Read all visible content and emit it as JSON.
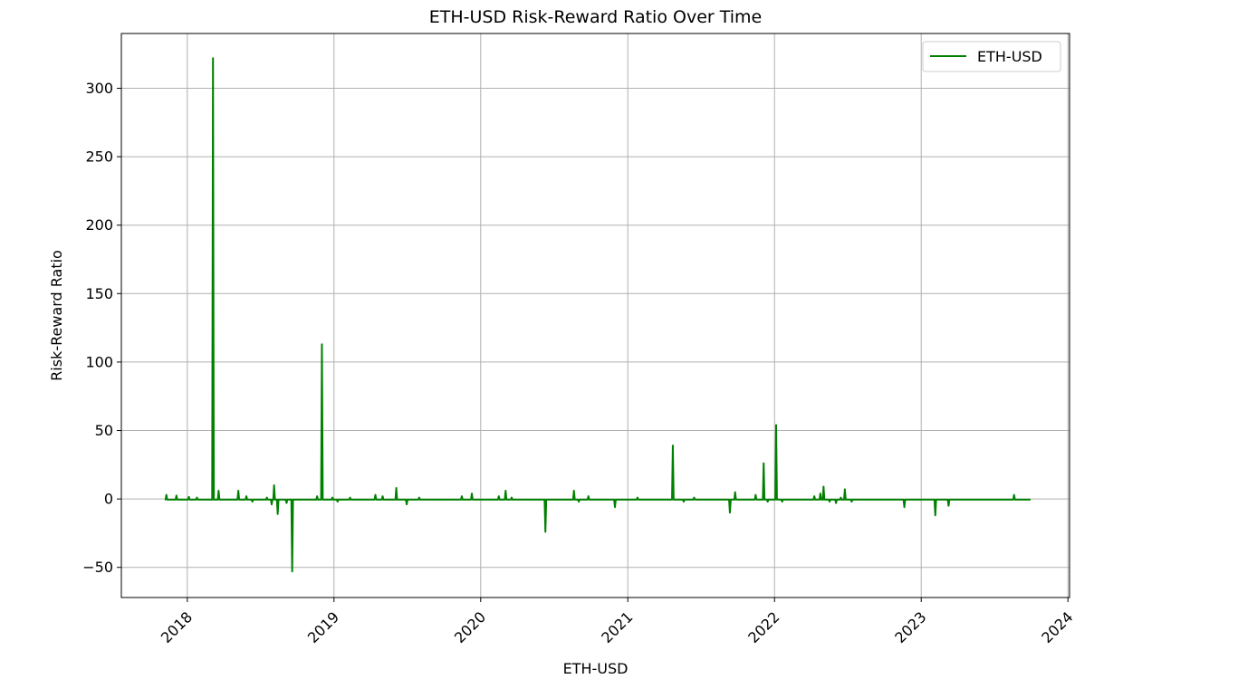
{
  "chart_data": {
    "type": "line",
    "title": "ETH-USD Risk-Reward Ratio Over Time",
    "xlabel": "ETH-USD",
    "ylabel": "Risk-Reward Ratio",
    "xlim": [
      "2017-07-21",
      "2024-01-05"
    ],
    "ylim": [
      -72,
      340
    ],
    "x_ticks": [
      "2018",
      "2019",
      "2020",
      "2021",
      "2022",
      "2023",
      "2024"
    ],
    "y_ticks": [
      -50,
      0,
      50,
      100,
      150,
      200,
      250,
      300
    ],
    "grid": true,
    "legend": "top-right",
    "colors": {
      "series": "#008000",
      "grid": "#b0b0b0",
      "axes": "#000000"
    },
    "series": [
      {
        "name": "ETH-USD",
        "color": "#008000",
        "baseline": -0.5,
        "start": "2017-11-09",
        "end": "2023-09-30",
        "points": [
          {
            "x": "2017-11-10",
            "y": 3
          },
          {
            "x": "2017-12-05",
            "y": 2.5
          },
          {
            "x": "2018-01-05",
            "y": 1.5
          },
          {
            "x": "2018-01-25",
            "y": 1
          },
          {
            "x": "2018-03-06",
            "y": 322
          },
          {
            "x": "2018-03-20",
            "y": 6
          },
          {
            "x": "2018-05-08",
            "y": 6
          },
          {
            "x": "2018-05-28",
            "y": 2
          },
          {
            "x": "2018-06-12",
            "y": -2
          },
          {
            "x": "2018-07-18",
            "y": 1
          },
          {
            "x": "2018-07-30",
            "y": -4
          },
          {
            "x": "2018-08-05",
            "y": 10
          },
          {
            "x": "2018-08-14",
            "y": -11
          },
          {
            "x": "2018-09-05",
            "y": -3
          },
          {
            "x": "2018-09-19",
            "y": -53
          },
          {
            "x": "2018-11-20",
            "y": 2
          },
          {
            "x": "2018-12-02",
            "y": 113
          },
          {
            "x": "2018-12-28",
            "y": 1
          },
          {
            "x": "2019-01-10",
            "y": -2
          },
          {
            "x": "2019-02-10",
            "y": 1
          },
          {
            "x": "2019-04-14",
            "y": 3
          },
          {
            "x": "2019-05-02",
            "y": 2
          },
          {
            "x": "2019-06-05",
            "y": 8
          },
          {
            "x": "2019-07-01",
            "y": -4
          },
          {
            "x": "2019-08-01",
            "y": 1
          },
          {
            "x": "2019-11-15",
            "y": 2
          },
          {
            "x": "2019-12-10",
            "y": 4
          },
          {
            "x": "2020-02-15",
            "y": 2
          },
          {
            "x": "2020-03-03",
            "y": 6
          },
          {
            "x": "2020-03-18",
            "y": 1
          },
          {
            "x": "2020-06-10",
            "y": -24
          },
          {
            "x": "2020-08-20",
            "y": 6
          },
          {
            "x": "2020-09-01",
            "y": -2
          },
          {
            "x": "2020-09-25",
            "y": 2
          },
          {
            "x": "2020-11-30",
            "y": -6
          },
          {
            "x": "2021-01-25",
            "y": 1
          },
          {
            "x": "2021-04-23",
            "y": 39
          },
          {
            "x": "2021-05-20",
            "y": -2
          },
          {
            "x": "2021-06-15",
            "y": 1
          },
          {
            "x": "2021-09-12",
            "y": -10
          },
          {
            "x": "2021-09-25",
            "y": 5
          },
          {
            "x": "2021-11-15",
            "y": 3
          },
          {
            "x": "2021-12-05",
            "y": 26
          },
          {
            "x": "2021-12-15",
            "y": -2
          },
          {
            "x": "2022-01-05",
            "y": 54
          },
          {
            "x": "2022-01-20",
            "y": -2
          },
          {
            "x": "2022-04-10",
            "y": 2
          },
          {
            "x": "2022-04-25",
            "y": 4
          },
          {
            "x": "2022-05-03",
            "y": 9
          },
          {
            "x": "2022-05-18",
            "y": -2
          },
          {
            "x": "2022-06-03",
            "y": -3
          },
          {
            "x": "2022-06-15",
            "y": 1
          },
          {
            "x": "2022-06-25",
            "y": 7
          },
          {
            "x": "2022-07-12",
            "y": -2
          },
          {
            "x": "2022-11-20",
            "y": -6
          },
          {
            "x": "2023-02-05",
            "y": -12
          },
          {
            "x": "2023-03-10",
            "y": -5
          },
          {
            "x": "2023-08-20",
            "y": 3
          }
        ]
      }
    ]
  }
}
